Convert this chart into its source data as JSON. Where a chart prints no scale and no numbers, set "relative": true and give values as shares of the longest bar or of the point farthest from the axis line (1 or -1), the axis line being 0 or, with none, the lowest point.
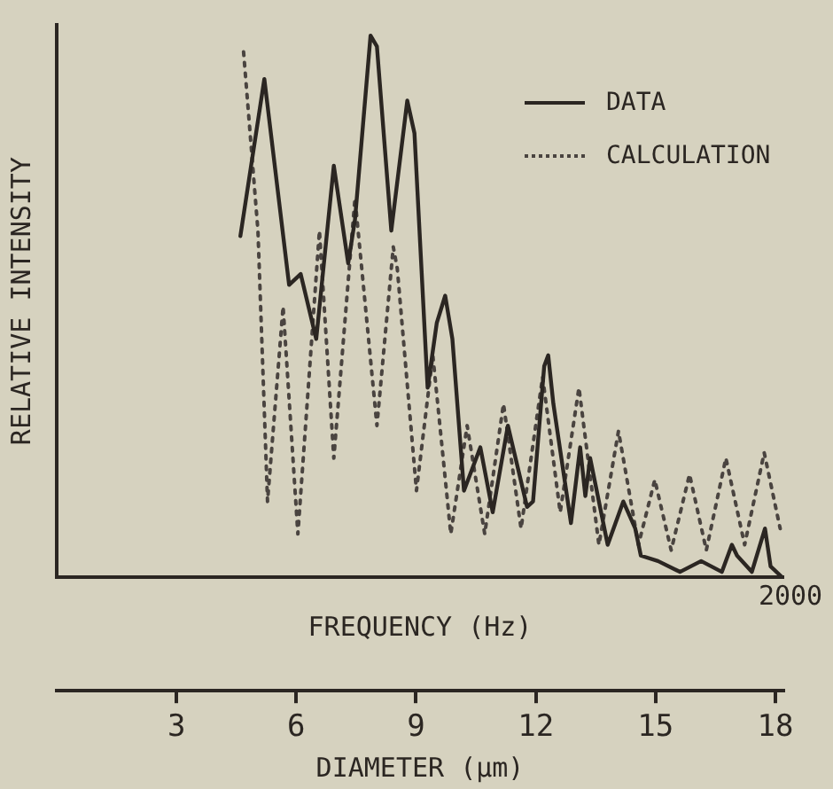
{
  "chart_data": {
    "type": "line",
    "relative": true,
    "ylabel": "RELATIVE INTENSITY",
    "xlabel": "DIAMETER (μm)",
    "x2label": "FREQUENCY (Hz)",
    "annotations": [
      "2000"
    ],
    "xlim": [
      0,
      18.2
    ],
    "xticks": [
      3,
      6,
      9,
      12,
      15,
      18
    ],
    "legend": "top right",
    "marker": "none",
    "grid": false,
    "series": [
      {
        "name": "DATA",
        "color": "#2b2622",
        "line_style": "solid",
        "x": [
          4.6,
          5.2,
          5.82,
          6.11,
          6.5,
          6.94,
          7.3,
          7.47,
          7.86,
          8.02,
          8.38,
          8.78,
          8.96,
          9.29,
          9.52,
          9.73,
          9.91,
          10.2,
          10.61,
          10.92,
          11.3,
          11.78,
          11.93,
          12.21,
          12.31,
          12.44,
          12.88,
          13.11,
          13.24,
          13.36,
          13.8,
          14.19,
          14.49,
          14.63,
          15.06,
          15.61,
          16.14,
          16.66,
          16.91,
          17.04,
          17.41,
          17.74,
          17.88,
          18.17
        ],
        "values": [
          0.63,
          0.92,
          0.54,
          0.56,
          0.44,
          0.76,
          0.58,
          0.66,
          1,
          0.98,
          0.64,
          0.88,
          0.82,
          0.35,
          0.47,
          0.52,
          0.44,
          0.16,
          0.24,
          0.12,
          0.28,
          0.13,
          0.14,
          0.39,
          0.41,
          0.32,
          0.1,
          0.24,
          0.15,
          0.22,
          0.06,
          0.14,
          0.09,
          0.04,
          0.03,
          0.01,
          0.03,
          0.01,
          0.06,
          0.04,
          0.01,
          0.09,
          0.02,
          0
        ]
      },
      {
        "name": "CALCULATION",
        "color": "#4a4440",
        "line_style": "dotted",
        "x": [
          4.68,
          5.04,
          5.28,
          5.67,
          6.04,
          6.58,
          6.94,
          7.47,
          8.02,
          8.43,
          8.53,
          9.01,
          9.42,
          9.87,
          10.28,
          10.72,
          11.19,
          11.63,
          12.17,
          12.61,
          13.08,
          13.58,
          14.07,
          14.57,
          14.98,
          15.39,
          15.85,
          16.27,
          16.76,
          17.23,
          17.72,
          18.12
        ],
        "values": [
          0.97,
          0.64,
          0.14,
          0.5,
          0.08,
          0.64,
          0.22,
          0.7,
          0.28,
          0.61,
          0.57,
          0.16,
          0.41,
          0.08,
          0.28,
          0.08,
          0.32,
          0.09,
          0.37,
          0.12,
          0.35,
          0.06,
          0.27,
          0.06,
          0.18,
          0.05,
          0.19,
          0.05,
          0.22,
          0.06,
          0.23,
          0.09
        ]
      }
    ]
  }
}
